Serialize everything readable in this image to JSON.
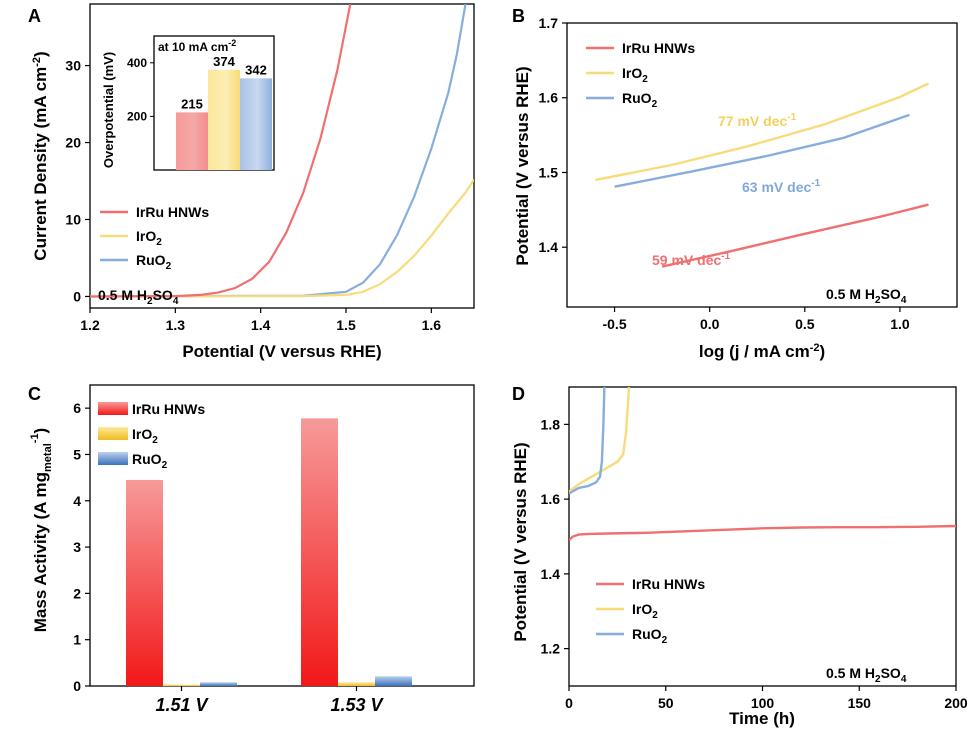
{
  "colors": {
    "irru": "#F07070",
    "iro2": "#F8DC7A",
    "ruo2": "#86AEDC",
    "ann_irru": "#F07070",
    "ann_iro2": "#F4D060",
    "ann_ruo2": "#80A8D8"
  },
  "chart_data": [
    {
      "panel": "A",
      "type": "line",
      "xlabel": "Potential (V versus RHE)",
      "ylabel": "Current Density (mA cm⁻²)",
      "xlim": [
        1.2,
        1.65
      ],
      "ylim": [
        -1.5,
        38
      ],
      "xticks": [
        1.2,
        1.3,
        1.4,
        1.5,
        1.6
      ],
      "xtick_labels": [
        "1.2",
        "1.3",
        "1.4",
        "1.5",
        "1.6"
      ],
      "yticks": [
        0,
        10,
        20,
        30
      ],
      "ytick_labels": [
        "0",
        "10",
        "20",
        "30"
      ],
      "legend": [
        "IrRu HNWs",
        "IrO₂",
        "RuO₂"
      ],
      "annotation": "0.5 M H₂SO₄",
      "series": [
        {
          "name": "IrRu HNWs",
          "key": "irru",
          "x": [
            1.2,
            1.3,
            1.33,
            1.35,
            1.37,
            1.39,
            1.41,
            1.43,
            1.45,
            1.47,
            1.49,
            1.505
          ],
          "y": [
            0,
            0.05,
            0.2,
            0.5,
            1.1,
            2.3,
            4.5,
            8.3,
            13.5,
            20.5,
            29.5,
            38
          ]
        },
        {
          "name": "IrO₂",
          "key": "iro2",
          "x": [
            1.2,
            1.45,
            1.5,
            1.52,
            1.54,
            1.56,
            1.58,
            1.6,
            1.62,
            1.64,
            1.65
          ],
          "y": [
            0,
            0.05,
            0.2,
            0.6,
            1.6,
            3.2,
            5.3,
            7.9,
            10.8,
            13.5,
            15.2
          ]
        },
        {
          "name": "RuO₂",
          "key": "ruo2",
          "x": [
            1.2,
            1.45,
            1.5,
            1.52,
            1.54,
            1.56,
            1.58,
            1.6,
            1.62,
            1.63,
            1.64
          ],
          "y": [
            0,
            0.1,
            0.6,
            1.8,
            4.2,
            8.0,
            13.0,
            19.2,
            26.5,
            31.5,
            38
          ]
        }
      ],
      "inset": {
        "type": "bar",
        "title": "at 10 mA cm⁻²",
        "ylabel": "Overpotential (mV)",
        "ylim": [
          0,
          500
        ],
        "yticks": [
          200,
          400
        ],
        "categories": [
          "IrRu HNWs",
          "IrO₂",
          "RuO₂"
        ],
        "values": [
          215,
          374,
          342
        ],
        "value_labels": [
          "215",
          "374",
          "342"
        ]
      }
    },
    {
      "panel": "B",
      "type": "line",
      "xlabel": "log (j / mA cm⁻²)",
      "ylabel": "Potential (V versus RHE)",
      "xlim": [
        -0.75,
        1.3
      ],
      "ylim": [
        1.32,
        1.7
      ],
      "xticks": [
        -0.5,
        0.0,
        0.5,
        1.0
      ],
      "xtick_labels": [
        "-0.5",
        "0.0",
        "0.5",
        "1.0"
      ],
      "yticks": [
        1.4,
        1.5,
        1.6,
        1.7
      ],
      "ytick_labels": [
        "1.4",
        "1.5",
        "1.6",
        "1.7"
      ],
      "legend": [
        "IrRu HNWs",
        "IrO₂",
        "RuO₂"
      ],
      "annotation": "0.5 M H₂SO₄",
      "tafel_labels": [
        "59 mV dec⁻¹",
        "77 mV dec⁻¹",
        "63 mV dec⁻¹"
      ],
      "series": [
        {
          "name": "IrRu HNWs",
          "key": "irru",
          "x": [
            -0.25,
            0.1,
            0.5,
            0.9,
            1.15
          ],
          "y": [
            1.374,
            1.394,
            1.418,
            1.441,
            1.457
          ]
        },
        {
          "name": "IrO₂",
          "key": "iro2",
          "x": [
            -0.6,
            -0.2,
            0.2,
            0.6,
            1.0,
            1.15
          ],
          "y": [
            1.49,
            1.51,
            1.535,
            1.564,
            1.601,
            1.619
          ]
        },
        {
          "name": "RuO₂",
          "key": "ruo2",
          "x": [
            -0.5,
            -0.1,
            0.3,
            0.7,
            1.05
          ],
          "y": [
            1.481,
            1.501,
            1.522,
            1.546,
            1.577
          ]
        }
      ]
    },
    {
      "panel": "C",
      "type": "bar",
      "xlabel": "",
      "ylabel": "Mass Activity (A mg_metal⁻¹)",
      "ylim": [
        0,
        6.5
      ],
      "yticks": [
        0,
        1,
        2,
        3,
        4,
        5,
        6
      ],
      "ytick_labels": [
        "0",
        "1",
        "2",
        "3",
        "4",
        "5",
        "6"
      ],
      "categories": [
        "1.51 V",
        "1.53 V"
      ],
      "legend": [
        "IrRu HNWs",
        "IrO₂",
        "RuO₂"
      ],
      "series": [
        {
          "name": "IrRu HNWs",
          "key": "irru",
          "values": [
            4.45,
            5.78
          ]
        },
        {
          "name": "IrO₂",
          "key": "iro2",
          "values": [
            0.03,
            0.08
          ]
        },
        {
          "name": "RuO₂",
          "key": "ruo2",
          "values": [
            0.08,
            0.21
          ]
        }
      ]
    },
    {
      "panel": "D",
      "type": "line",
      "xlabel": "Time (h)",
      "ylabel": "Potential (V versus RHE)",
      "xlim": [
        0,
        200
      ],
      "ylim": [
        1.1,
        1.9
      ],
      "xticks": [
        0,
        50,
        100,
        150,
        200
      ],
      "xtick_labels": [
        "0",
        "50",
        "100",
        "150",
        "200"
      ],
      "yticks": [
        1.2,
        1.4,
        1.6,
        1.8
      ],
      "ytick_labels": [
        "1.2",
        "1.4",
        "1.6",
        "1.8"
      ],
      "legend": [
        "IrRu HNWs",
        "IrO₂",
        "RuO₂"
      ],
      "annotation": "0.5 M H₂SO₄",
      "series": [
        {
          "name": "IrRu HNWs",
          "key": "irru",
          "x": [
            0,
            2,
            5,
            10,
            20,
            40,
            60,
            80,
            100,
            120,
            140,
            160,
            180,
            200
          ],
          "y": [
            1.49,
            1.5,
            1.505,
            1.507,
            1.508,
            1.51,
            1.514,
            1.518,
            1.522,
            1.524,
            1.525,
            1.525,
            1.526,
            1.528
          ]
        },
        {
          "name": "IrO₂",
          "key": "iro2",
          "x": [
            0,
            5,
            10,
            15,
            20,
            25,
            28,
            29.5,
            30.5,
            31
          ],
          "y": [
            1.62,
            1.64,
            1.655,
            1.67,
            1.685,
            1.7,
            1.72,
            1.78,
            1.86,
            1.9
          ]
        },
        {
          "name": "RuO₂",
          "key": "ruo2",
          "x": [
            0,
            5,
            10,
            14,
            16,
            17,
            17.8,
            18.3
          ],
          "y": [
            1.615,
            1.63,
            1.635,
            1.645,
            1.66,
            1.7,
            1.8,
            1.9
          ]
        }
      ]
    }
  ]
}
